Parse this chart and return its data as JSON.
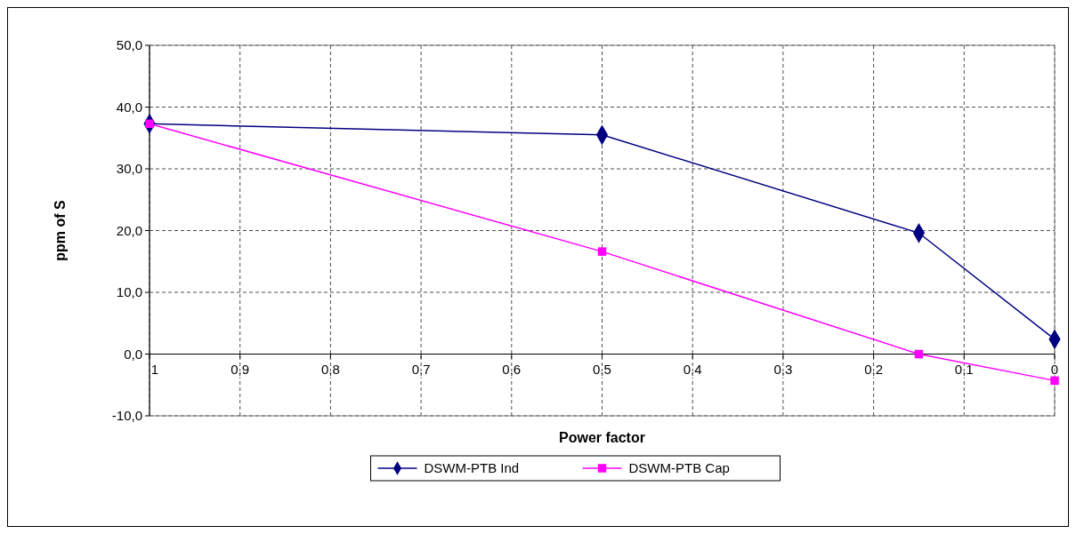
{
  "chart_data": {
    "type": "line",
    "xlabel": "Power factor",
    "ylabel": "ppm of S",
    "x": [
      1,
      0.5,
      0.15,
      0
    ],
    "series": [
      {
        "name": "DSWM-PTB Ind",
        "color": "#000080",
        "marker": "diamond",
        "values": [
          37.3,
          35.5,
          19.6,
          2.4
        ]
      },
      {
        "name": "DSWM-PTB Cap",
        "color": "#ff00ff",
        "marker": "square",
        "values": [
          37.3,
          16.6,
          0,
          -4.3
        ]
      }
    ],
    "xlim": [
      1,
      0
    ],
    "xticks": [
      1,
      {
        "value": 0.9,
        "label": "0,9"
      },
      {
        "value": 0.8,
        "label": "0,8"
      },
      {
        "value": 0.7,
        "label": "0,7"
      },
      {
        "value": 0.6,
        "label": "0,6"
      },
      {
        "value": 0.5,
        "label": "0,5"
      },
      {
        "value": 0.4,
        "label": "0,4"
      },
      {
        "value": 0.3,
        "label": "0,3"
      },
      {
        "value": 0.2,
        "label": "0,2"
      },
      {
        "value": 0.1,
        "label": "0,1"
      },
      0
    ],
    "ylim": [
      -10,
      50
    ],
    "yticks": [
      {
        "value": -10,
        "label": "-10,0"
      },
      {
        "value": 0,
        "label": "0,0"
      },
      {
        "value": 10,
        "label": "10,0"
      },
      {
        "value": 20,
        "label": "20,0"
      },
      {
        "value": 30,
        "label": "30,0"
      },
      {
        "value": 40,
        "label": "40,0"
      },
      {
        "value": 50,
        "label": "50,0"
      }
    ],
    "grid": true,
    "legend": "bottom",
    "line_style": "solid"
  }
}
